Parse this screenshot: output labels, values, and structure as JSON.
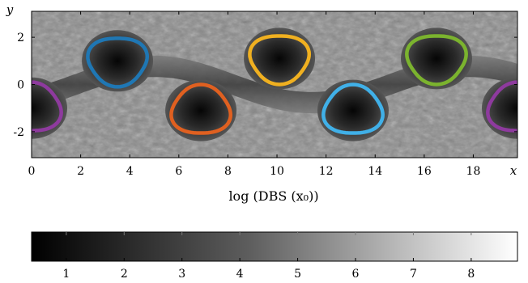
{
  "chart_data": [
    {
      "type": "heatmap",
      "xlabel": "log (DBS (x₀))",
      "x_letter": "x",
      "y_letter": "y",
      "xlim": [
        0,
        19.8
      ],
      "ylim": [
        -3.1,
        3.1
      ],
      "x_ticks": [
        0,
        2,
        4,
        6,
        8,
        10,
        12,
        14,
        16,
        18
      ],
      "y_ticks": [
        {
          "value": 2,
          "label": "2"
        },
        {
          "value": 0,
          "label": "0"
        },
        {
          "value": -2,
          "label": "-2"
        }
      ],
      "colormap": "grayscale (black to white)",
      "vortex_outlines": [
        {
          "center": [
            3.5,
            1.0
          ],
          "color": "#1f77b4"
        },
        {
          "center": [
            10.1,
            1.1
          ],
          "color": "#f0b020"
        },
        {
          "center": [
            16.5,
            1.1
          ],
          "color": "#7bb32e"
        },
        {
          "center": [
            6.9,
            -1.1
          ],
          "color": "#e06020"
        },
        {
          "center": [
            13.1,
            -1.1
          ],
          "color": "#40b0e8"
        },
        {
          "center": [
            0.0,
            -1.0
          ],
          "color": "#8e3a9e"
        },
        {
          "center": [
            19.8,
            -1.0
          ],
          "color": "#8e3a9e"
        }
      ]
    },
    {
      "type": "colorbar",
      "ticks": [
        1,
        2,
        3,
        4,
        5,
        6,
        7,
        8
      ],
      "range": [
        0.4,
        8.8
      ],
      "colormap": "grayscale (black to white)"
    }
  ]
}
